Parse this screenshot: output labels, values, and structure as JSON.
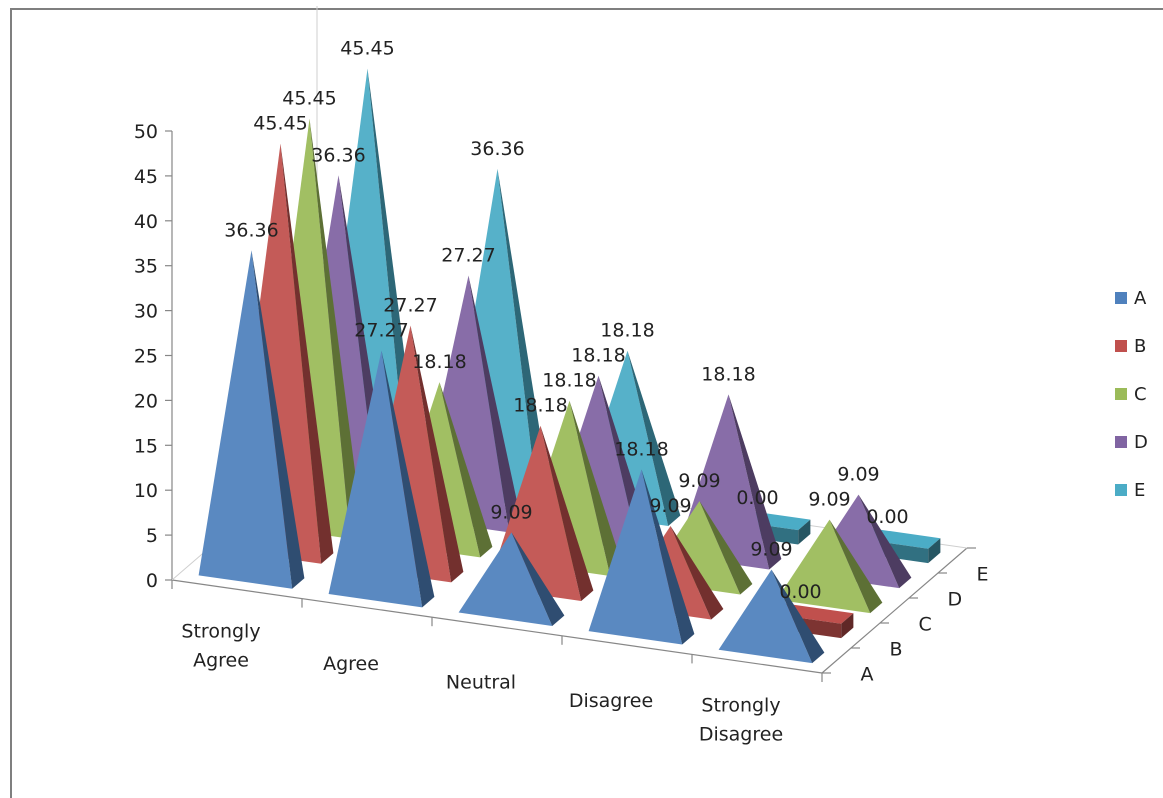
{
  "chart_data": {
    "type": "bar",
    "subtype": "3d-pyramid",
    "categories": [
      "Strongly Agree",
      "Agree",
      "Neutral",
      "Disagree",
      "Strongly Disagree"
    ],
    "category_lines": [
      [
        "Strongly",
        "Agree"
      ],
      [
        "Agree"
      ],
      [
        "Neutral"
      ],
      [
        "Disagree"
      ],
      [
        "Strongly",
        "Disagree"
      ]
    ],
    "series": [
      {
        "name": "A",
        "color": "#4f81bd",
        "values": [
          36.36,
          27.27,
          9.09,
          18.18,
          9.09
        ],
        "labels": [
          "36.36",
          "27.27",
          "9.09",
          "18.18",
          "9.09"
        ]
      },
      {
        "name": "B",
        "color": "#c0504d",
        "values": [
          45.45,
          27.27,
          18.18,
          9.09,
          0.0
        ],
        "labels": [
          "45.45",
          "27.27",
          "18.18",
          "9.09",
          "0.00"
        ]
      },
      {
        "name": "C",
        "color": "#9bbb59",
        "values": [
          45.45,
          18.18,
          18.18,
          9.09,
          9.09
        ],
        "labels": [
          "45.45",
          "18.18",
          "18.18",
          "9.09",
          "9.09"
        ]
      },
      {
        "name": "D",
        "color": "#8064a2",
        "values": [
          36.36,
          27.27,
          18.18,
          18.18,
          9.09
        ],
        "labels": [
          "36.36",
          "27.27",
          "18.18",
          "18.18",
          "9.09"
        ]
      },
      {
        "name": "E",
        "color": "#4bacc6",
        "values": [
          45.45,
          36.36,
          18.18,
          0.0,
          0.0
        ],
        "labels": [
          "45.45",
          "36.36",
          "18.18",
          "0.00",
          "0.00"
        ]
      }
    ],
    "y_ticks": [
      "0",
      "5",
      "10",
      "15",
      "20",
      "25",
      "30",
      "35",
      "40",
      "45",
      "50"
    ],
    "ylim": [
      0,
      50
    ],
    "depth_labels": [
      "A",
      "B",
      "C",
      "D",
      "E"
    ],
    "legend": {
      "position": "right",
      "entries": [
        "A",
        "B",
        "C",
        "D",
        "E"
      ]
    },
    "grid": false
  }
}
